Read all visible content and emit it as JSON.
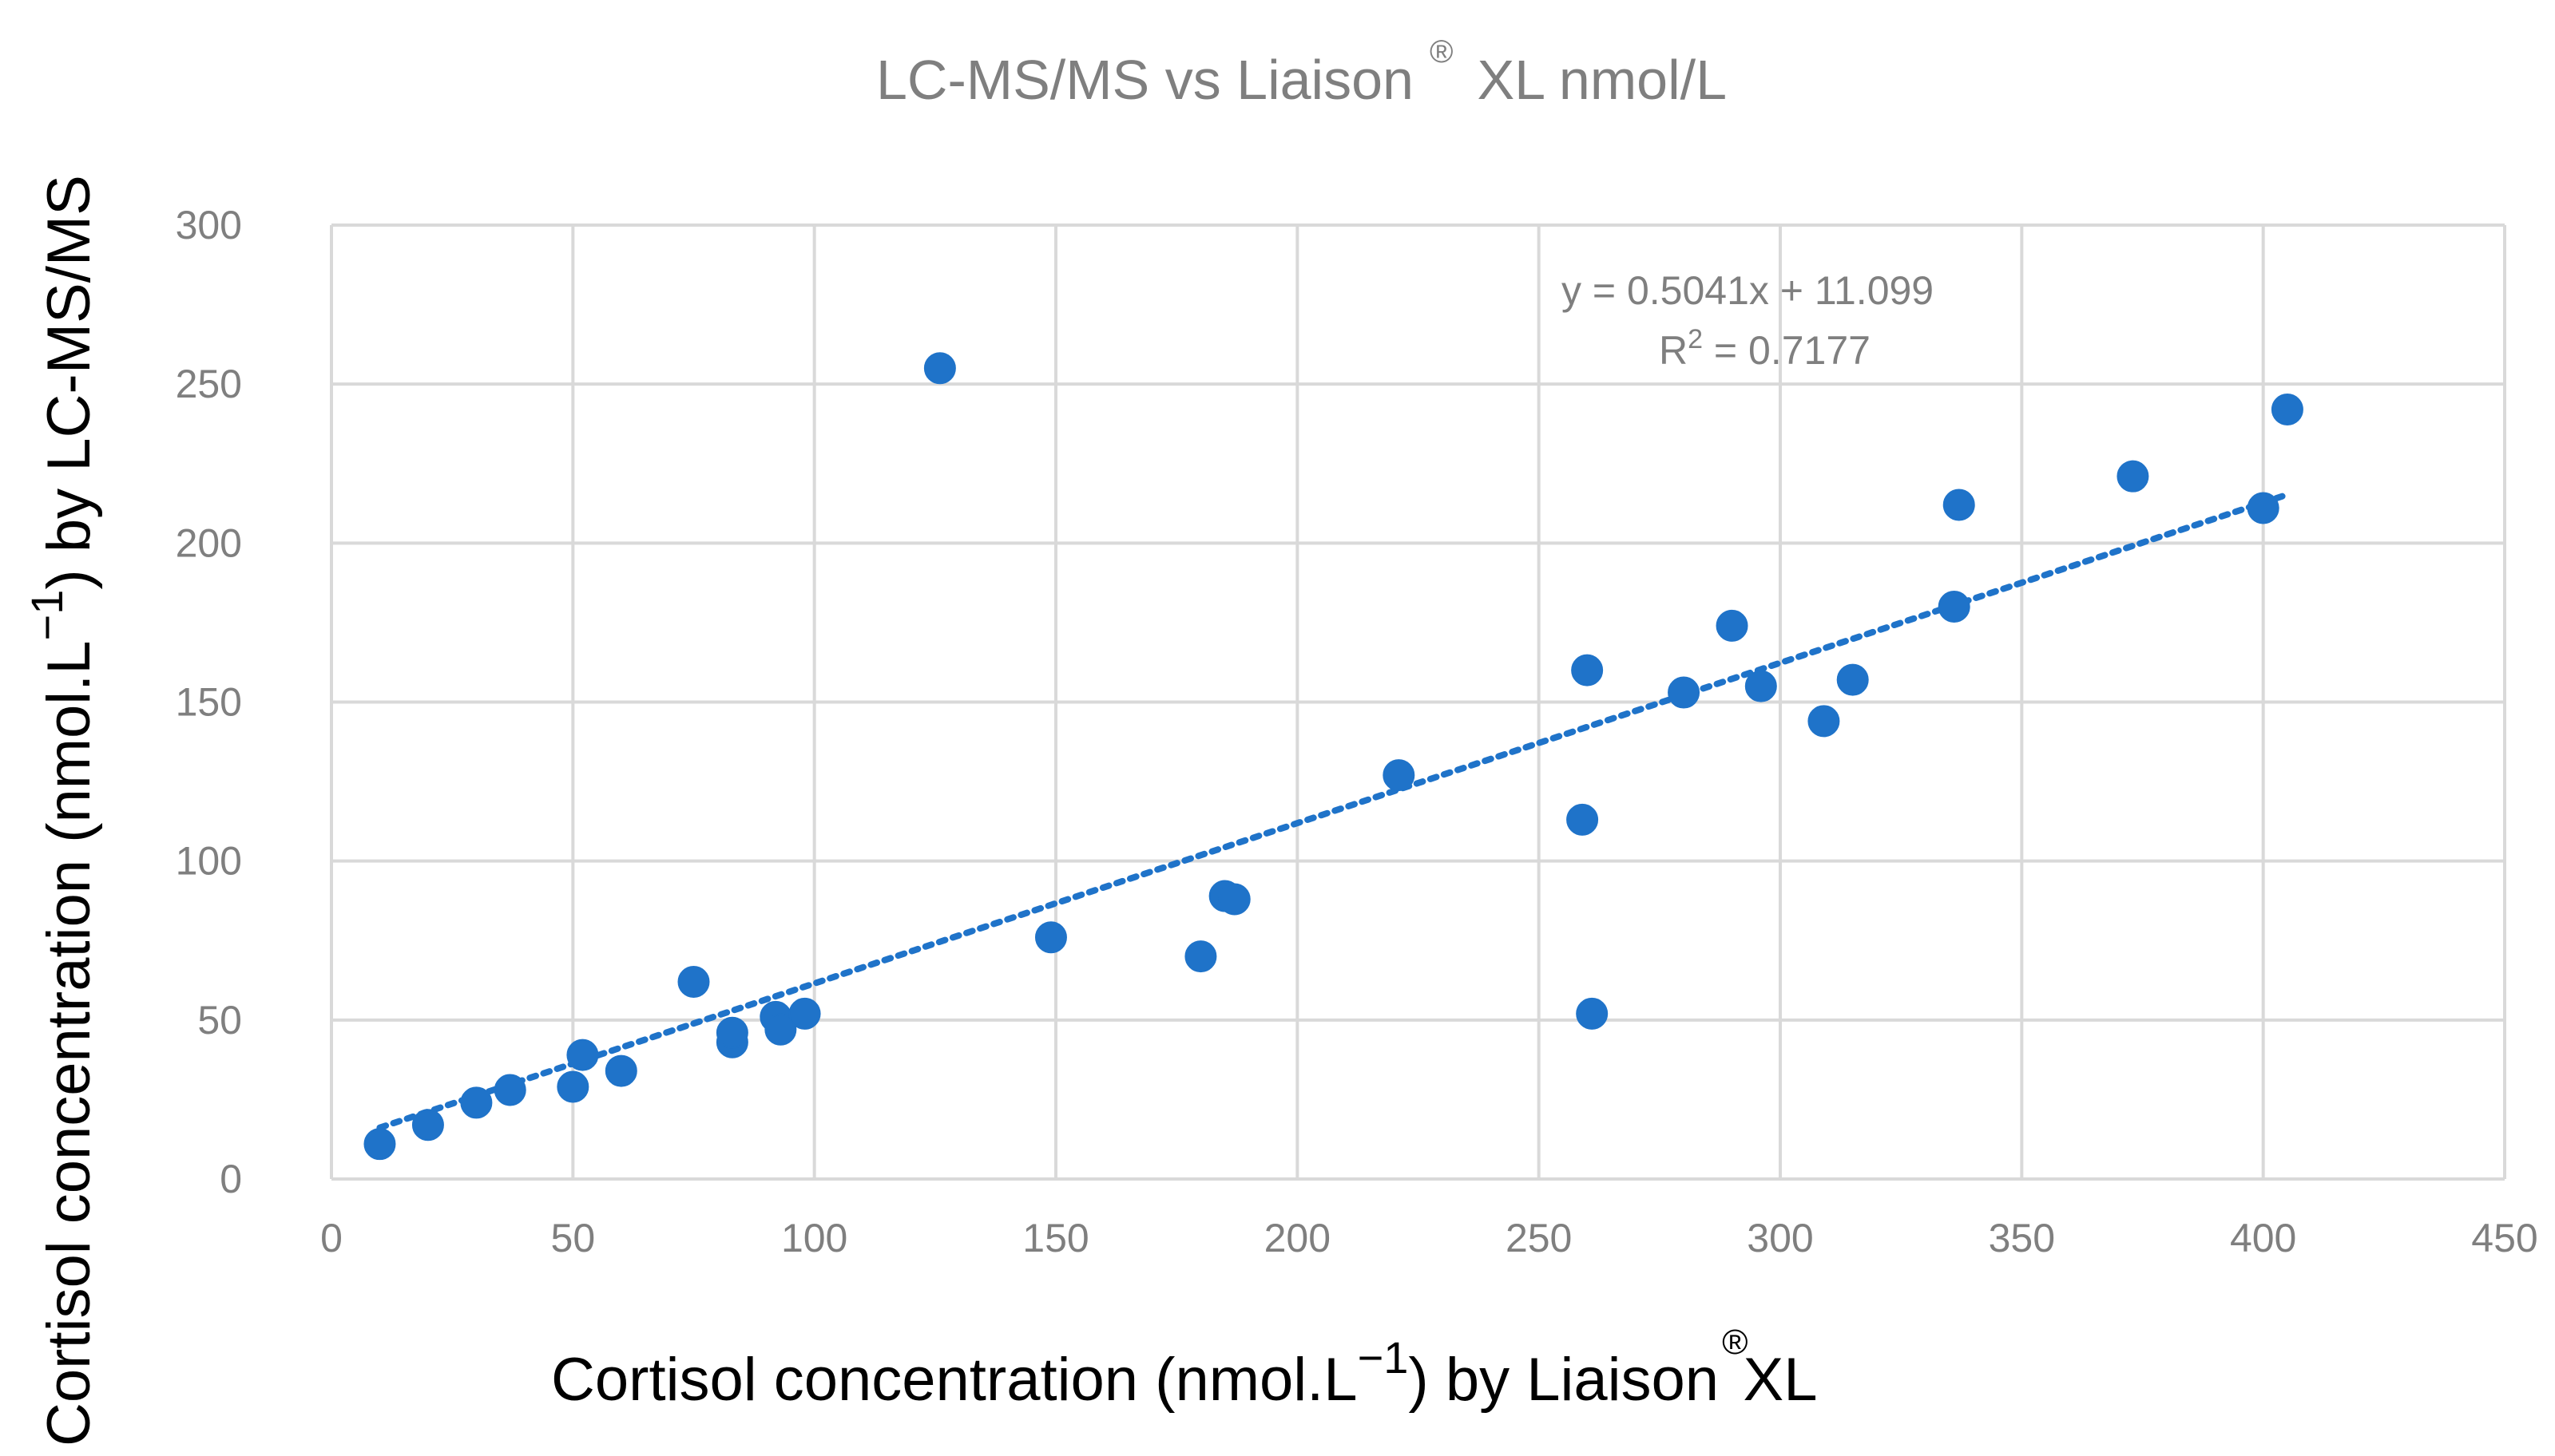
{
  "chart_data": {
    "type": "scatter",
    "title": {
      "main": "LC-MS/MS vs Liaison",
      "sup": "®",
      "tail": "XL  nmol/L"
    },
    "xlabel": {
      "main": "Cortisol concentration (nmol.L",
      "sup": "−1",
      "mid": ") by Liaison",
      "sup2": "®",
      "tail": "XL"
    },
    "ylabel": {
      "main": "Cortisol concentration (nmol.L",
      "sup": "−1",
      "tail": ") by LC-MS/MS"
    },
    "xlim": [
      0,
      450
    ],
    "ylim": [
      0,
      300
    ],
    "x_ticks": [
      0,
      50,
      100,
      150,
      200,
      250,
      300,
      350,
      400,
      450
    ],
    "y_ticks": [
      0,
      50,
      100,
      150,
      200,
      250,
      300
    ],
    "x_tick_labels": [
      "0",
      "50",
      "100",
      "150",
      "200",
      "250",
      "300",
      "350",
      "400",
      "450"
    ],
    "y_tick_labels": [
      "0",
      "50",
      "100",
      "150",
      "200",
      "250",
      "300"
    ],
    "grid": true,
    "legend": "none",
    "series": [
      {
        "name": "Samples",
        "color": "#1f73c9",
        "points": [
          [
            10,
            11
          ],
          [
            20,
            17
          ],
          [
            30,
            24
          ],
          [
            37,
            28
          ],
          [
            50,
            29
          ],
          [
            52,
            39
          ],
          [
            60,
            34
          ],
          [
            75,
            62
          ],
          [
            83,
            43
          ],
          [
            83,
            46
          ],
          [
            92,
            51
          ],
          [
            93,
            47
          ],
          [
            98,
            52
          ],
          [
            126,
            255
          ],
          [
            149,
            76
          ],
          [
            180,
            70
          ],
          [
            185,
            89
          ],
          [
            187,
            88
          ],
          [
            221,
            127
          ],
          [
            259,
            113
          ],
          [
            260,
            160
          ],
          [
            261,
            52
          ],
          [
            280,
            153
          ],
          [
            290,
            174
          ],
          [
            296,
            155
          ],
          [
            309,
            144
          ],
          [
            315,
            157
          ],
          [
            336,
            180
          ],
          [
            337,
            212
          ],
          [
            373,
            221
          ],
          [
            400,
            211
          ],
          [
            405,
            242
          ]
        ]
      }
    ],
    "trendline": {
      "type": "linear",
      "slope": 0.5041,
      "intercept": 11.099,
      "x_range": [
        10,
        405
      ],
      "equation": "y = 0.5041x + 11.099",
      "r2_label": "R",
      "r2_sup": "2",
      "r2_value": " = 0.7177"
    }
  }
}
